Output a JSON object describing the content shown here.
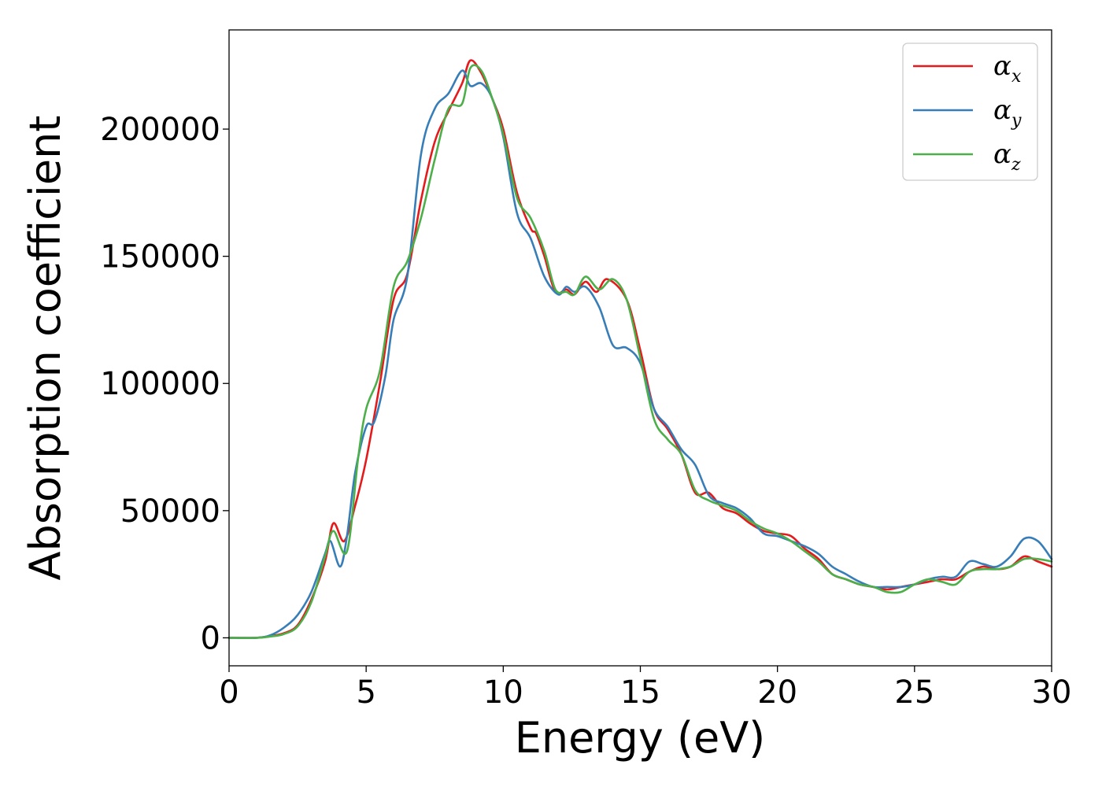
{
  "chart_data": {
    "type": "line",
    "title": "",
    "xlabel": "Energy (eV)",
    "ylabel": "Absorption coefficient",
    "xlim": [
      0,
      30
    ],
    "ylim": [
      -11000,
      239000
    ],
    "xticks": [
      "0",
      "5",
      "10",
      "15",
      "20",
      "25",
      "30"
    ],
    "xtick_values": [
      0,
      5,
      10,
      15,
      20,
      25,
      30
    ],
    "yticks": [
      "0",
      "50000",
      "100000",
      "150000",
      "200000"
    ],
    "ytick_values": [
      0,
      50000,
      100000,
      150000,
      200000
    ],
    "grid": false,
    "legend_position": "top-right",
    "series": [
      {
        "name": "α_x",
        "legend_base": "α",
        "legend_sub": "x",
        "color": "#e41a1c",
        "points": [
          [
            0,
            0
          ],
          [
            1,
            0
          ],
          [
            1.5,
            700
          ],
          [
            2,
            1800
          ],
          [
            2.5,
            5000
          ],
          [
            3,
            15000
          ],
          [
            3.5,
            30000
          ],
          [
            3.8,
            45000
          ],
          [
            4.2,
            38000
          ],
          [
            4.6,
            52000
          ],
          [
            5,
            70000
          ],
          [
            5.5,
            100000
          ],
          [
            6,
            133000
          ],
          [
            6.5,
            143000
          ],
          [
            7,
            172000
          ],
          [
            7.5,
            195000
          ],
          [
            8,
            207000
          ],
          [
            8.5,
            218000
          ],
          [
            8.8,
            227000
          ],
          [
            9.2,
            222000
          ],
          [
            9.6,
            212000
          ],
          [
            10,
            200000
          ],
          [
            10.5,
            175000
          ],
          [
            11,
            161000
          ],
          [
            11.2,
            159000
          ],
          [
            11.5,
            150000
          ],
          [
            11.9,
            136000
          ],
          [
            12.3,
            137000
          ],
          [
            12.6,
            135000
          ],
          [
            13,
            140000
          ],
          [
            13.4,
            136000
          ],
          [
            13.8,
            141000
          ],
          [
            14.5,
            133000
          ],
          [
            15,
            113000
          ],
          [
            15.5,
            90000
          ],
          [
            16,
            82000
          ],
          [
            16.5,
            72000
          ],
          [
            17,
            57000
          ],
          [
            17.5,
            57000
          ],
          [
            18,
            51000
          ],
          [
            18.5,
            49000
          ],
          [
            19,
            45000
          ],
          [
            19.5,
            42000
          ],
          [
            20,
            41000
          ],
          [
            20.5,
            40000
          ],
          [
            21,
            35000
          ],
          [
            21.5,
            31000
          ],
          [
            22,
            25000
          ],
          [
            22.5,
            23000
          ],
          [
            23,
            21000
          ],
          [
            23.5,
            20000
          ],
          [
            24,
            19000
          ],
          [
            24.5,
            20000
          ],
          [
            25,
            21000
          ],
          [
            25.5,
            22000
          ],
          [
            26,
            23000
          ],
          [
            26.5,
            23000
          ],
          [
            27,
            26000
          ],
          [
            27.5,
            28000
          ],
          [
            28,
            27000
          ],
          [
            28.5,
            28000
          ],
          [
            29,
            32000
          ],
          [
            29.5,
            30000
          ],
          [
            30,
            28000
          ]
        ]
      },
      {
        "name": "α_y",
        "legend_base": "α",
        "legend_sub": "y",
        "color": "#377eb8",
        "points": [
          [
            0,
            0
          ],
          [
            1,
            0
          ],
          [
            1.5,
            1000
          ],
          [
            2,
            4000
          ],
          [
            2.5,
            9000
          ],
          [
            3,
            18000
          ],
          [
            3.5,
            33000
          ],
          [
            3.7,
            38000
          ],
          [
            4.05,
            28000
          ],
          [
            4.3,
            40000
          ],
          [
            4.6,
            65000
          ],
          [
            5,
            83000
          ],
          [
            5.3,
            85000
          ],
          [
            5.7,
            103000
          ],
          [
            6,
            125000
          ],
          [
            6.5,
            142000
          ],
          [
            7,
            190000
          ],
          [
            7.5,
            208000
          ],
          [
            8,
            214000
          ],
          [
            8.5,
            223000
          ],
          [
            8.8,
            217000
          ],
          [
            9.2,
            218000
          ],
          [
            9.6,
            212000
          ],
          [
            10,
            197000
          ],
          [
            10.5,
            167000
          ],
          [
            11,
            157000
          ],
          [
            11.5,
            142000
          ],
          [
            12,
            135000
          ],
          [
            12.3,
            138000
          ],
          [
            12.6,
            136000
          ],
          [
            13,
            138000
          ],
          [
            13.5,
            130000
          ],
          [
            14,
            115000
          ],
          [
            14.5,
            114000
          ],
          [
            15,
            108000
          ],
          [
            15.5,
            90000
          ],
          [
            16,
            83000
          ],
          [
            16.5,
            74000
          ],
          [
            17,
            68000
          ],
          [
            17.5,
            56000
          ],
          [
            18,
            53000
          ],
          [
            18.5,
            51000
          ],
          [
            19,
            47000
          ],
          [
            19.5,
            41000
          ],
          [
            20,
            40000
          ],
          [
            20.5,
            38000
          ],
          [
            21,
            36000
          ],
          [
            21.5,
            33000
          ],
          [
            22,
            28000
          ],
          [
            22.5,
            25000
          ],
          [
            23,
            22000
          ],
          [
            23.5,
            20000
          ],
          [
            24,
            20000
          ],
          [
            24.5,
            20000
          ],
          [
            25,
            21000
          ],
          [
            25.5,
            23000
          ],
          [
            26,
            24000
          ],
          [
            26.5,
            24000
          ],
          [
            27,
            30000
          ],
          [
            27.5,
            29000
          ],
          [
            28,
            28000
          ],
          [
            28.5,
            32000
          ],
          [
            29,
            39000
          ],
          [
            29.5,
            38000
          ],
          [
            30,
            31000
          ]
        ]
      },
      {
        "name": "α_z",
        "legend_base": "α",
        "legend_sub": "z",
        "color": "#4daf4a",
        "points": [
          [
            0,
            0
          ],
          [
            1,
            0
          ],
          [
            1.5,
            500
          ],
          [
            2,
            1500
          ],
          [
            2.5,
            4500
          ],
          [
            3,
            14000
          ],
          [
            3.5,
            32000
          ],
          [
            3.8,
            42000
          ],
          [
            4.3,
            34000
          ],
          [
            4.7,
            70000
          ],
          [
            5,
            90000
          ],
          [
            5.5,
            105000
          ],
          [
            6,
            138000
          ],
          [
            6.5,
            148000
          ],
          [
            7,
            165000
          ],
          [
            7.5,
            188000
          ],
          [
            8,
            208000
          ],
          [
            8.5,
            210000
          ],
          [
            8.8,
            224000
          ],
          [
            9.2,
            223000
          ],
          [
            9.6,
            212000
          ],
          [
            10,
            198000
          ],
          [
            10.5,
            173000
          ],
          [
            11,
            165000
          ],
          [
            11.5,
            152000
          ],
          [
            11.9,
            137000
          ],
          [
            12.3,
            136000
          ],
          [
            12.6,
            135000
          ],
          [
            13,
            142000
          ],
          [
            13.5,
            137000
          ],
          [
            14,
            141000
          ],
          [
            14.5,
            133000
          ],
          [
            15,
            110000
          ],
          [
            15.5,
            86000
          ],
          [
            16,
            78000
          ],
          [
            16.5,
            72000
          ],
          [
            17,
            58000
          ],
          [
            17.5,
            54000
          ],
          [
            18,
            52000
          ],
          [
            18.5,
            50000
          ],
          [
            19,
            46000
          ],
          [
            19.5,
            43000
          ],
          [
            20,
            41000
          ],
          [
            20.5,
            38000
          ],
          [
            21,
            34000
          ],
          [
            21.5,
            30000
          ],
          [
            22,
            25000
          ],
          [
            22.5,
            23000
          ],
          [
            23,
            21000
          ],
          [
            23.5,
            20000
          ],
          [
            24,
            18000
          ],
          [
            24.5,
            18000
          ],
          [
            25,
            21000
          ],
          [
            25.5,
            23000
          ],
          [
            26,
            22000
          ],
          [
            26.5,
            21000
          ],
          [
            27,
            26000
          ],
          [
            27.5,
            27000
          ],
          [
            28,
            27000
          ],
          [
            28.5,
            28000
          ],
          [
            29,
            31000
          ],
          [
            29.5,
            31000
          ],
          [
            30,
            30000
          ]
        ]
      }
    ]
  }
}
